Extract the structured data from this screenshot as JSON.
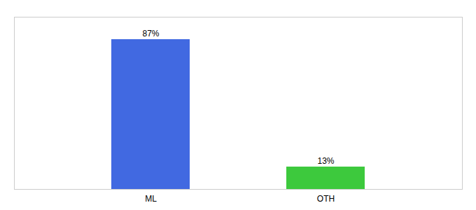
{
  "chart_data": {
    "type": "bar",
    "categories": [
      "ML",
      "OTH"
    ],
    "values": [
      87,
      13
    ],
    "colors": [
      "#4169e1",
      "#3dc93d"
    ],
    "ylim": [
      0,
      100
    ],
    "data_labels": true,
    "value_labels": [
      "87%",
      "13%"
    ],
    "tick_labels": "x"
  }
}
